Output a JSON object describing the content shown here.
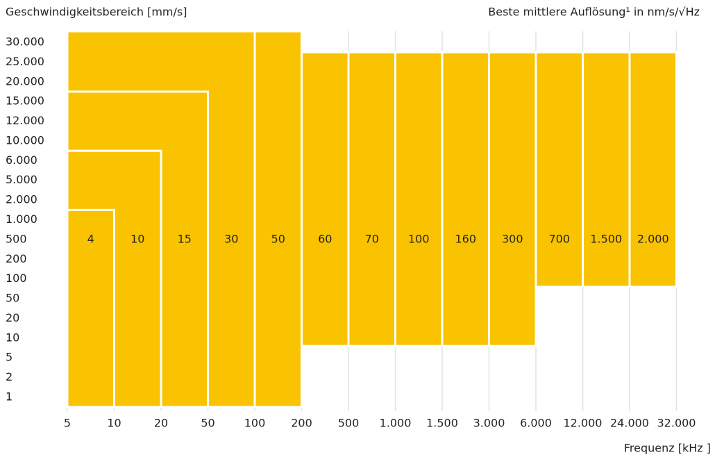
{
  "chart_data": {
    "type": "range-bar",
    "y_label": "Geschwindigkeitsbereich [mm/s]",
    "value_title": "Beste mittlere Auflösung¹ in nm/s/√Hz",
    "x_label": "Frequenz [kHz ]",
    "color": "#f9c301",
    "x_ranges": [
      [
        5,
        10
      ],
      [
        5,
        20
      ],
      [
        5,
        50
      ],
      [
        5,
        100
      ],
      [
        100,
        200
      ],
      [
        200,
        500
      ],
      [
        500,
        1000
      ],
      [
        1000,
        1500
      ],
      [
        1500,
        3000
      ],
      [
        3000,
        6000
      ],
      [
        6000,
        12000
      ],
      [
        12000,
        24000
      ],
      [
        24000,
        32000
      ]
    ],
    "y_ranges": [
      [
        0.5,
        1500
      ],
      [
        0.5,
        8000
      ],
      [
        0.5,
        17500
      ],
      [
        0.5,
        35000
      ],
      [
        0.5,
        35000
      ],
      [
        8,
        27500
      ],
      [
        8,
        27500
      ],
      [
        8,
        27500
      ],
      [
        8,
        27500
      ],
      [
        8,
        27500
      ],
      [
        80,
        27500
      ],
      [
        80,
        27500
      ],
      [
        80,
        27500
      ]
    ],
    "values": [
      4,
      10,
      15,
      30,
      50,
      60,
      70,
      100,
      160,
      300,
      700,
      1500,
      2000
    ],
    "value_labels": [
      "4",
      "10",
      "15",
      "30",
      "50",
      "60",
      "70",
      "100",
      "160",
      "300",
      "700",
      "1.500",
      "2.000"
    ],
    "xlim": [
      5,
      32000
    ],
    "xticks": [
      5,
      10,
      20,
      50,
      100,
      200,
      500,
      {
        "value": 1000,
        "label": "1.000"
      },
      {
        "value": 1500,
        "label": "1.500"
      },
      {
        "value": 3000,
        "label": "3.000"
      },
      {
        "value": 6000,
        "label": "6.000"
      },
      {
        "value": 12000,
        "label": "12.000"
      },
      {
        "value": 24000,
        "label": "24.000"
      },
      {
        "value": 32000,
        "label": "32.000"
      }
    ],
    "ylim": [
      0.5,
      35000
    ],
    "yticks": [
      1,
      2,
      5,
      10,
      20,
      50,
      100,
      200,
      500,
      {
        "value": 1000,
        "label": "1.000"
      },
      {
        "value": 2000,
        "label": "2.000"
      },
      {
        "value": 5000,
        "label": "5.000"
      },
      {
        "value": 6000,
        "label": "6.000"
      },
      {
        "value": 10000,
        "label": "10.000"
      },
      {
        "value": 12000,
        "label": "12.000"
      },
      {
        "value": 15000,
        "label": "15.000"
      },
      {
        "value": 20000,
        "label": "20.000"
      },
      {
        "value": 25000,
        "label": "25.000"
      },
      {
        "value": 30000,
        "label": "30.000"
      }
    ],
    "grid": true
  }
}
